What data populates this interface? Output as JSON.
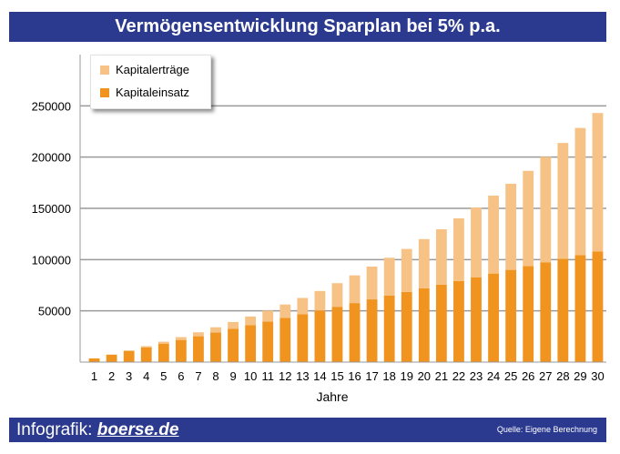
{
  "title": "Vermögensentwicklung Sparplan bei 5% p.a.",
  "footer": {
    "label": "Infografik:",
    "brand": "boerse.de",
    "source": "Quelle: Eigene Berechnung"
  },
  "colors": {
    "kapitaleinsatz": "#f0941f",
    "kapitalertraege": "#f7c285",
    "header_bg": "#2b3a8f"
  },
  "legend": {
    "items": [
      {
        "label": "Kapitalerträge",
        "color": "#f7c285"
      },
      {
        "label": "Kapitaleinsatz",
        "color": "#f0941f"
      }
    ]
  },
  "chart_data": {
    "type": "bar",
    "stacked": true,
    "title": "Vermögensentwicklung Sparplan bei 5% p.a.",
    "xlabel": "Jahre",
    "ylabel": "",
    "ylim": [
      0,
      300000
    ],
    "yticks": [
      50000,
      100000,
      150000,
      200000,
      250000
    ],
    "grid": true,
    "legend_position": "top-left",
    "categories": [
      "1",
      "2",
      "3",
      "4",
      "5",
      "6",
      "7",
      "8",
      "9",
      "10",
      "11",
      "12",
      "13",
      "14",
      "15",
      "16",
      "17",
      "18",
      "19",
      "20",
      "21",
      "22",
      "23",
      "24",
      "25",
      "26",
      "27",
      "28",
      "29",
      "30"
    ],
    "series": [
      {
        "name": "Kapitaleinsatz",
        "values": [
          3600,
          7200,
          10800,
          14400,
          18000,
          21600,
          25200,
          28800,
          32400,
          36000,
          39600,
          43200,
          46800,
          50400,
          54000,
          57600,
          61200,
          64800,
          68400,
          72000,
          75600,
          79200,
          82800,
          86400,
          90000,
          93600,
          97200,
          100800,
          104400,
          108000
        ]
      },
      {
        "name": "Kapitalerträge",
        "values": [
          100,
          300,
          700,
          1200,
          1900,
          2800,
          3900,
          5200,
          6700,
          8500,
          10600,
          13000,
          15800,
          19000,
          23000,
          27000,
          32000,
          37000,
          42000,
          48000,
          54000,
          61000,
          68000,
          76000,
          84000,
          93000,
          103000,
          113000,
          124000,
          135000
        ]
      }
    ]
  }
}
